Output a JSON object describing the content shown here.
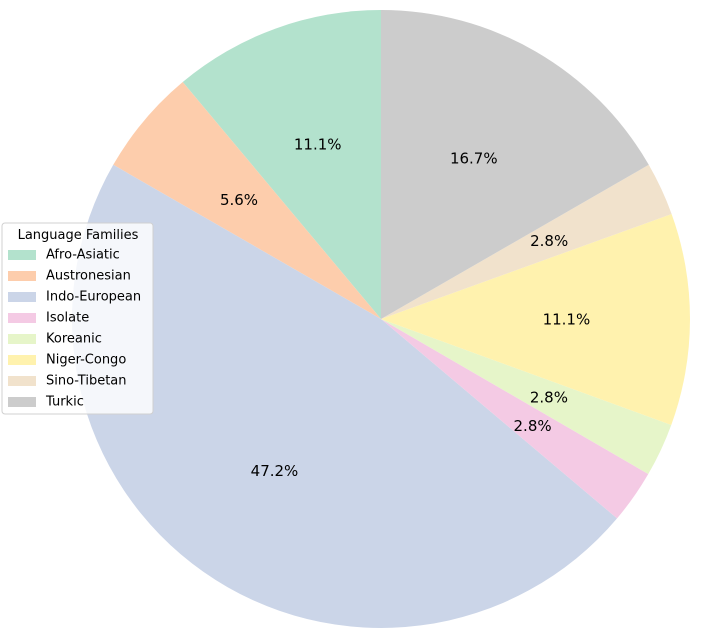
{
  "chart_data": {
    "type": "pie",
    "legend": {
      "title": "Language Families",
      "placement": "left"
    },
    "slices": [
      {
        "label": "Afro-Asiatic",
        "value": 11.1,
        "pct_label": "11.1%",
        "color": "#b3e2cd"
      },
      {
        "label": "Austronesian",
        "value": 5.6,
        "pct_label": "5.6%",
        "color": "#fdcdac"
      },
      {
        "label": "Indo-European",
        "value": 47.2,
        "pct_label": "47.2%",
        "color": "#cbd5e8"
      },
      {
        "label": "Isolate",
        "value": 2.8,
        "pct_label": "2.8%",
        "color": "#f4cae4"
      },
      {
        "label": "Koreanic",
        "value": 2.8,
        "pct_label": "2.8%",
        "color": "#e6f5c9"
      },
      {
        "label": "Niger-Congo",
        "value": 11.1,
        "pct_label": "11.1%",
        "color": "#fff2ae"
      },
      {
        "label": "Sino-Tibetan",
        "value": 2.8,
        "pct_label": "2.8%",
        "color": "#f1e2cc"
      },
      {
        "label": "Turkic",
        "value": 16.7,
        "pct_label": "16.7%",
        "color": "#cccccc"
      }
    ],
    "start_angle_deg": 90,
    "direction": "counterclockwise"
  }
}
